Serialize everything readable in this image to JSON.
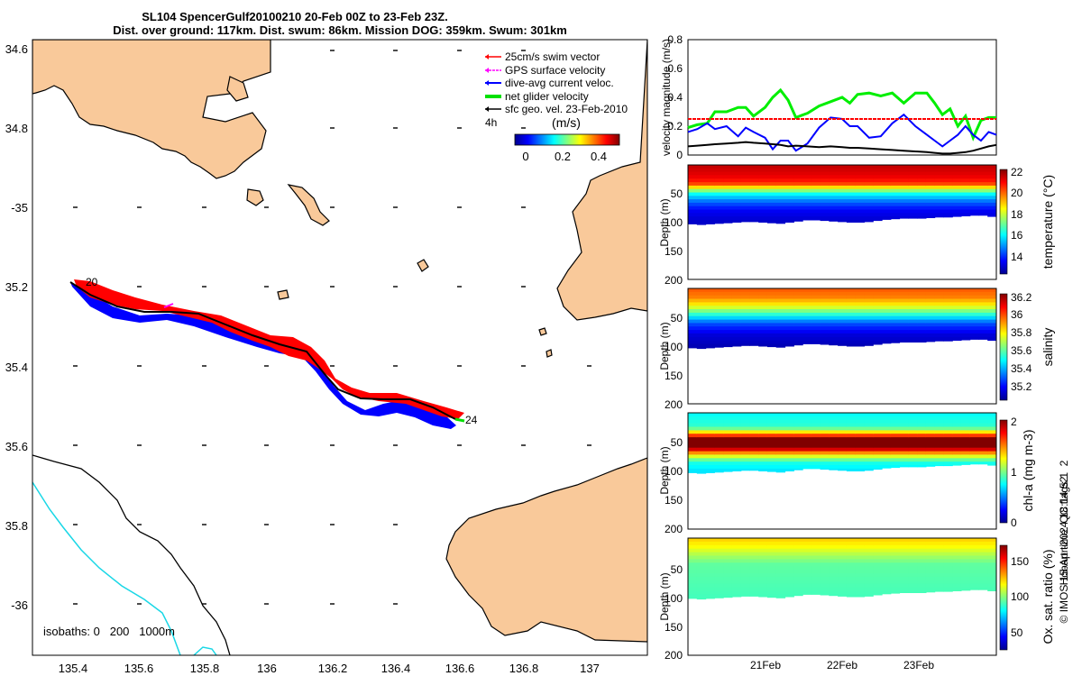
{
  "title": {
    "line1": "SL104 SpencerGulf20100210 20-Feb 00Z to 23-Feb 23Z.",
    "line2": "Dist. over ground: 117km. Dist. swum: 86km. Mission DOG: 359km. Swum: 301km"
  },
  "map": {
    "legend": [
      {
        "label": "25cm/s swim vector",
        "color": "#ff0000"
      },
      {
        "label": "GPS surface velocity",
        "color": "#ff00ff"
      },
      {
        "label": "dive-avg current veloc.",
        "color": "#0000ff"
      },
      {
        "label": "net glider velocity",
        "color": "#00e000"
      },
      {
        "label": "sfc geo. vel. 23-Feb-2010",
        "color": "#000000"
      }
    ],
    "time_step_label": "4h",
    "colorbar_label": "(m/s)",
    "colorbar_ticks": [
      "0",
      "0.2",
      "0.4"
    ],
    "isobaths_label": "isobaths: 0   200   1000m",
    "start_marker": "20",
    "end_marker": "24",
    "lon_ticks": [
      "135.4",
      "135.6",
      "135.8",
      "136",
      "136.2",
      "136.4",
      "136.6",
      "136.8",
      "137"
    ],
    "lat_ticks": [
      "34.6",
      "34.8",
      "-35",
      "35.2",
      "35.4",
      "35.6",
      "35.8",
      "-36"
    ],
    "colors": {
      "land": "#f9c99a",
      "glider_path": "#000000",
      "shelf_isobath": "#19d7e6"
    }
  },
  "chart_data": [
    {
      "type": "line",
      "ylabel": "velocity magnitude (m/s)",
      "ylim": [
        0,
        0.8
      ],
      "yticks": [
        "0",
        "0.2",
        "0.4",
        "0.6",
        "0.8"
      ],
      "xlim": [
        0,
        4
      ],
      "x": [
        0,
        0.12,
        0.25,
        0.35,
        0.5,
        0.65,
        0.75,
        0.85,
        1.0,
        1.1,
        1.2,
        1.3,
        1.4,
        1.55,
        1.7,
        1.85,
        2.0,
        2.1,
        2.2,
        2.35,
        2.5,
        2.65,
        2.8,
        2.95,
        3.1,
        3.2,
        3.3,
        3.4,
        3.5,
        3.6,
        3.7,
        3.8,
        3.9,
        4.0
      ],
      "series": [
        {
          "color": "#00ee00",
          "values": [
            0.19,
            0.21,
            0.22,
            0.3,
            0.3,
            0.33,
            0.33,
            0.27,
            0.33,
            0.4,
            0.45,
            0.38,
            0.26,
            0.29,
            0.34,
            0.37,
            0.4,
            0.36,
            0.42,
            0.43,
            0.41,
            0.43,
            0.36,
            0.43,
            0.43,
            0.36,
            0.28,
            0.32,
            0.2,
            0.27,
            0.12,
            0.24,
            0.26,
            0.26
          ]
        },
        {
          "color": "#0000ff",
          "values": [
            0.16,
            0.18,
            0.22,
            0.18,
            0.2,
            0.13,
            0.19,
            0.16,
            0.12,
            0.04,
            0.1,
            0.1,
            0.03,
            0.08,
            0.19,
            0.26,
            0.25,
            0.2,
            0.2,
            0.12,
            0.13,
            0.22,
            0.28,
            0.2,
            0.14,
            0.1,
            0.06,
            0.1,
            0.14,
            0.2,
            0.14,
            0.1,
            0.16,
            0.14
          ]
        },
        {
          "color": "#000000",
          "values": [
            0.06,
            0.065,
            0.07,
            0.075,
            0.08,
            0.085,
            0.09,
            0.085,
            0.08,
            0.075,
            0.07,
            0.06,
            0.065,
            0.06,
            0.055,
            0.06,
            0.055,
            0.05,
            0.05,
            0.045,
            0.04,
            0.035,
            0.03,
            0.025,
            0.02,
            0.015,
            0.01,
            0.01,
            0.015,
            0.02,
            0.03,
            0.045,
            0.06,
            0.07
          ]
        },
        {
          "color": "#ff0000",
          "values": [
            0.25,
            0.25,
            0.25,
            0.25,
            0.25,
            0.25,
            0.25,
            0.25,
            0.25,
            0.25,
            0.25,
            0.25,
            0.25,
            0.25,
            0.25,
            0.25,
            0.25,
            0.25,
            0.25,
            0.25,
            0.25,
            0.25,
            0.25,
            0.25,
            0.25,
            0.25,
            0.25,
            0.25,
            0.25,
            0.25,
            0.25,
            0.25,
            0.25,
            0.25
          ]
        }
      ]
    },
    {
      "type": "heatmap",
      "ylabel": "Depth (m)",
      "colorbar_label": "temperature (°C)",
      "colorbar_ticks": [
        "14",
        "16",
        "18",
        "20",
        "22"
      ],
      "range": [
        12.5,
        22.0
      ],
      "yticks": [
        "50",
        "100",
        "150",
        "200"
      ],
      "ylim": [
        0,
        200
      ],
      "bottom_depth_m": [
        103,
        104,
        103,
        102,
        101,
        100,
        99,
        99,
        100,
        101,
        102,
        100,
        98,
        96,
        96,
        97,
        98,
        99,
        100,
        100,
        99,
        97,
        95,
        94,
        93,
        93,
        93,
        92,
        91,
        91,
        90,
        89,
        88,
        88,
        90
      ],
      "profile": [
        [
          0,
          21.4
        ],
        [
          20,
          21.0
        ],
        [
          32,
          20.4
        ],
        [
          40,
          18.5
        ],
        [
          50,
          16.2
        ],
        [
          65,
          14.6
        ],
        [
          80,
          13.6
        ],
        [
          100,
          13.1
        ]
      ]
    },
    {
      "type": "heatmap",
      "ylabel": "Depth (m)",
      "colorbar_label": "salinity",
      "colorbar_ticks": [
        "35.2",
        "35.4",
        "35.6",
        "35.8",
        "36",
        "36.2"
      ],
      "range": [
        35.1,
        36.3
      ],
      "yticks": [
        "50",
        "100",
        "150",
        "200"
      ],
      "ylim": [
        0,
        200
      ],
      "profile": [
        [
          0,
          36.05
        ],
        [
          15,
          36.0
        ],
        [
          30,
          35.85
        ],
        [
          45,
          35.6
        ],
        [
          60,
          35.35
        ],
        [
          80,
          35.2
        ],
        [
          100,
          35.15
        ]
      ]
    },
    {
      "type": "heatmap",
      "ylabel": "Depth (m)",
      "colorbar_label": "chl-a (mg m-3)",
      "colorbar_ticks": [
        "0",
        "1",
        "2"
      ],
      "range": [
        0,
        2
      ],
      "yticks": [
        "50",
        "100",
        "150",
        "200"
      ],
      "ylim": [
        0,
        200
      ],
      "profile": [
        [
          0,
          0.75
        ],
        [
          25,
          0.85
        ],
        [
          35,
          1.4
        ],
        [
          45,
          2.0
        ],
        [
          60,
          2.0
        ],
        [
          72,
          1.3
        ],
        [
          85,
          0.8
        ],
        [
          100,
          0.7
        ]
      ]
    },
    {
      "type": "heatmap",
      "ylabel": "Depth (m)",
      "colorbar_label": "Ox. sat. ratio (%)",
      "colorbar_ticks": [
        "50",
        "100",
        "150"
      ],
      "range": [
        30,
        175
      ],
      "yticks": [
        "50",
        "100",
        "150",
        "200"
      ],
      "ylim": [
        0,
        200
      ],
      "xticks": [
        "21Feb",
        "22Feb",
        "23Feb"
      ],
      "profile": [
        [
          0,
          128
        ],
        [
          15,
          120
        ],
        [
          30,
          108
        ],
        [
          45,
          98
        ],
        [
          70,
          96
        ],
        [
          100,
          94
        ]
      ]
    }
  ],
  "right_side_caption": {
    "qc": "Hobart time. QC flags 1  2",
    "stamp": "© IMOS 15-Apr-2024 18:14:52"
  }
}
